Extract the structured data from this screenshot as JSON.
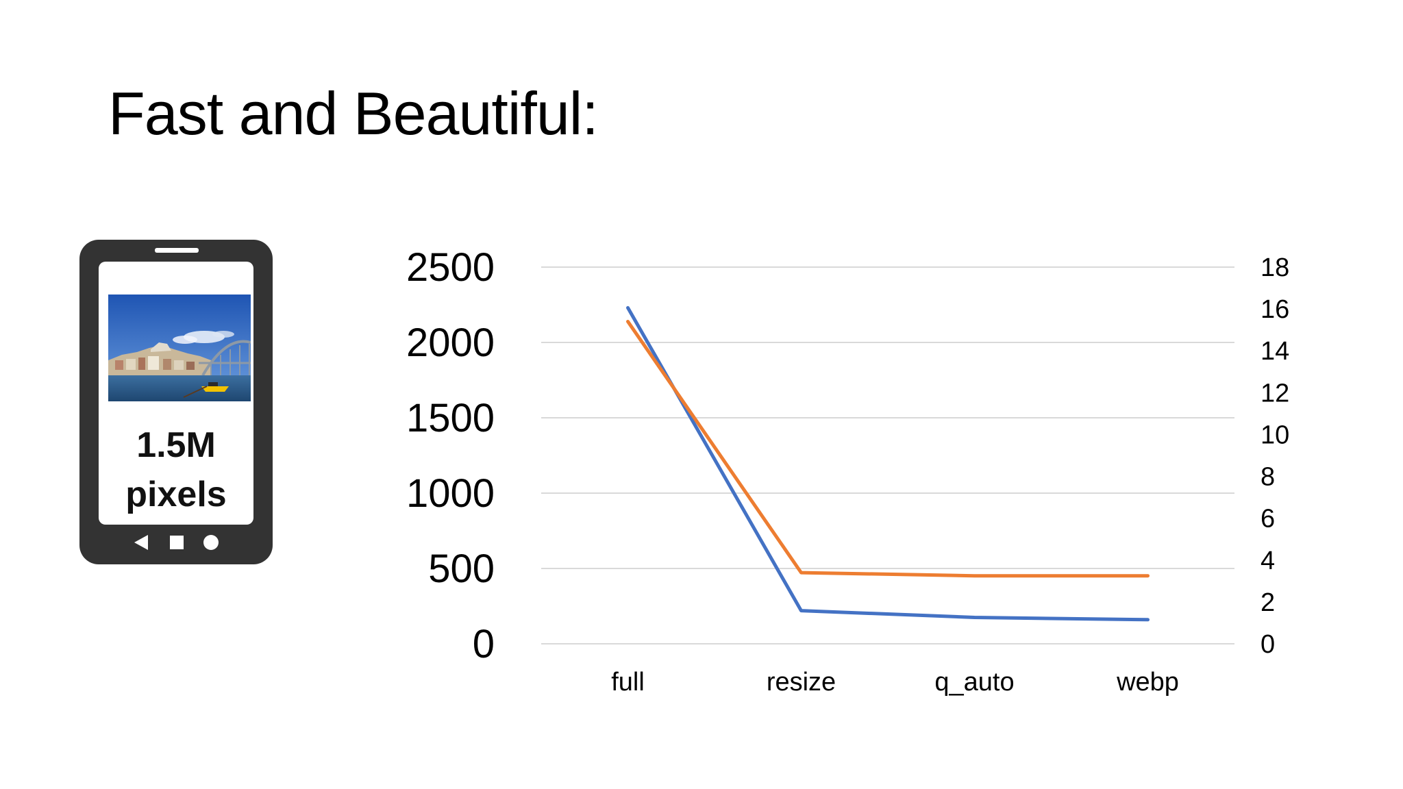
{
  "slide": {
    "title": "Fast and Beautiful:"
  },
  "phone": {
    "caption_line1": "1.5M",
    "caption_line2": "pixels",
    "photo_icon": "city-waterfront-photo",
    "nav_icons": [
      "back-triangle-icon",
      "home-square-icon",
      "recents-circle-icon"
    ]
  },
  "chart_data": {
    "type": "line",
    "title": "",
    "xlabel": "",
    "ylabel": "",
    "y2label": "",
    "categories": [
      "full",
      "resize",
      "q_auto",
      "webp"
    ],
    "ylim": [
      0,
      2500
    ],
    "yticks": [
      0,
      500,
      1000,
      1500,
      2000,
      2500
    ],
    "y2lim": [
      0,
      18
    ],
    "y2ticks": [
      0,
      2,
      4,
      6,
      8,
      10,
      12,
      14,
      16,
      18
    ],
    "grid": true,
    "legend": "none",
    "series": [
      {
        "axis": "left",
        "color": "#4472C4",
        "values": [
          2230,
          220,
          175,
          160
        ]
      },
      {
        "axis": "right",
        "color": "#ED7D31",
        "values": [
          15.4,
          3.4,
          3.25,
          3.25
        ]
      }
    ]
  }
}
